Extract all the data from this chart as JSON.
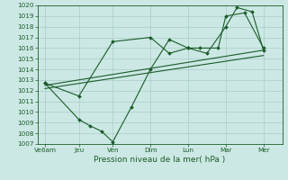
{
  "title": "",
  "xlabel": "Pression niveau de la mer( hPa )",
  "ylabel": "",
  "bg_color": "#cce8e4",
  "grid_color": "#aaccc8",
  "line_color": "#1a5c2a",
  "ylim": [
    1007,
    1020
  ],
  "xlim": [
    0,
    6.5
  ],
  "x_labels": [
    "Ve6am",
    "Jeu",
    "Ven",
    "Dim",
    "Lun",
    "Mar",
    "Mer"
  ],
  "x_positions": [
    0.2,
    1.1,
    2.0,
    3.0,
    4.0,
    5.0,
    6.0
  ],
  "series1_x": [
    0.2,
    1.1,
    2.0,
    3.0,
    3.5,
    4.0,
    4.3,
    4.8,
    5.0,
    5.5,
    6.0
  ],
  "series1_y": [
    1012.7,
    1011.5,
    1016.6,
    1017.0,
    1015.5,
    1016.0,
    1016.0,
    1016.0,
    1019.0,
    1019.3,
    1016.0
  ],
  "series2_x": [
    0.2,
    1.1,
    1.4,
    1.7,
    2.0,
    2.5,
    3.0,
    3.5,
    4.0,
    4.5,
    5.0,
    5.3,
    5.7,
    6.0
  ],
  "series2_y": [
    1012.7,
    1009.3,
    1008.7,
    1008.2,
    1007.2,
    1010.5,
    1014.0,
    1016.8,
    1016.0,
    1015.5,
    1018.0,
    1019.8,
    1019.4,
    1015.8
  ],
  "trend1_x": [
    0.2,
    6.0
  ],
  "trend1_y": [
    1012.5,
    1015.8
  ],
  "trend2_x": [
    0.2,
    6.0
  ],
  "trend2_y": [
    1012.2,
    1015.3
  ],
  "xlabel_fontsize": 6.5,
  "tick_fontsize": 5.2
}
